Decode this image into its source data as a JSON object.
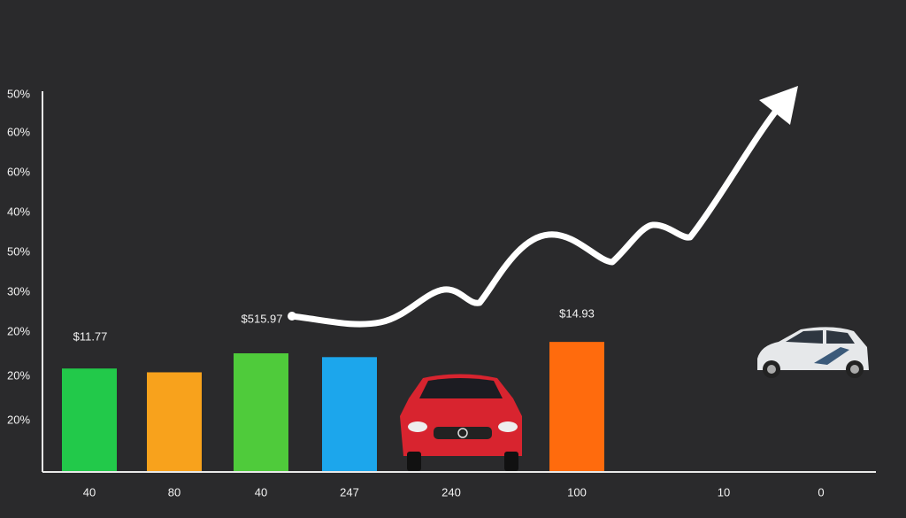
{
  "chart_data": {
    "type": "bar",
    "categories": [
      "40",
      "80",
      "40",
      "247",
      "240",
      "100",
      "10",
      "0"
    ],
    "values": [
      27,
      26,
      31,
      30,
      null,
      34,
      null,
      null
    ],
    "colors": [
      "#22c94a",
      "#f8a21c",
      "#4fcb3b",
      "#1ca6ec",
      null,
      "#ff6b0d",
      null,
      null
    ],
    "ylim": [
      0,
      100
    ],
    "y_labels": [
      "50%",
      "60%",
      "60%",
      "40%",
      "50%",
      "30%",
      "20%",
      "20%",
      "20%"
    ],
    "annotations": [
      "$11.77",
      "$515.97",
      "$14.93"
    ]
  }
}
